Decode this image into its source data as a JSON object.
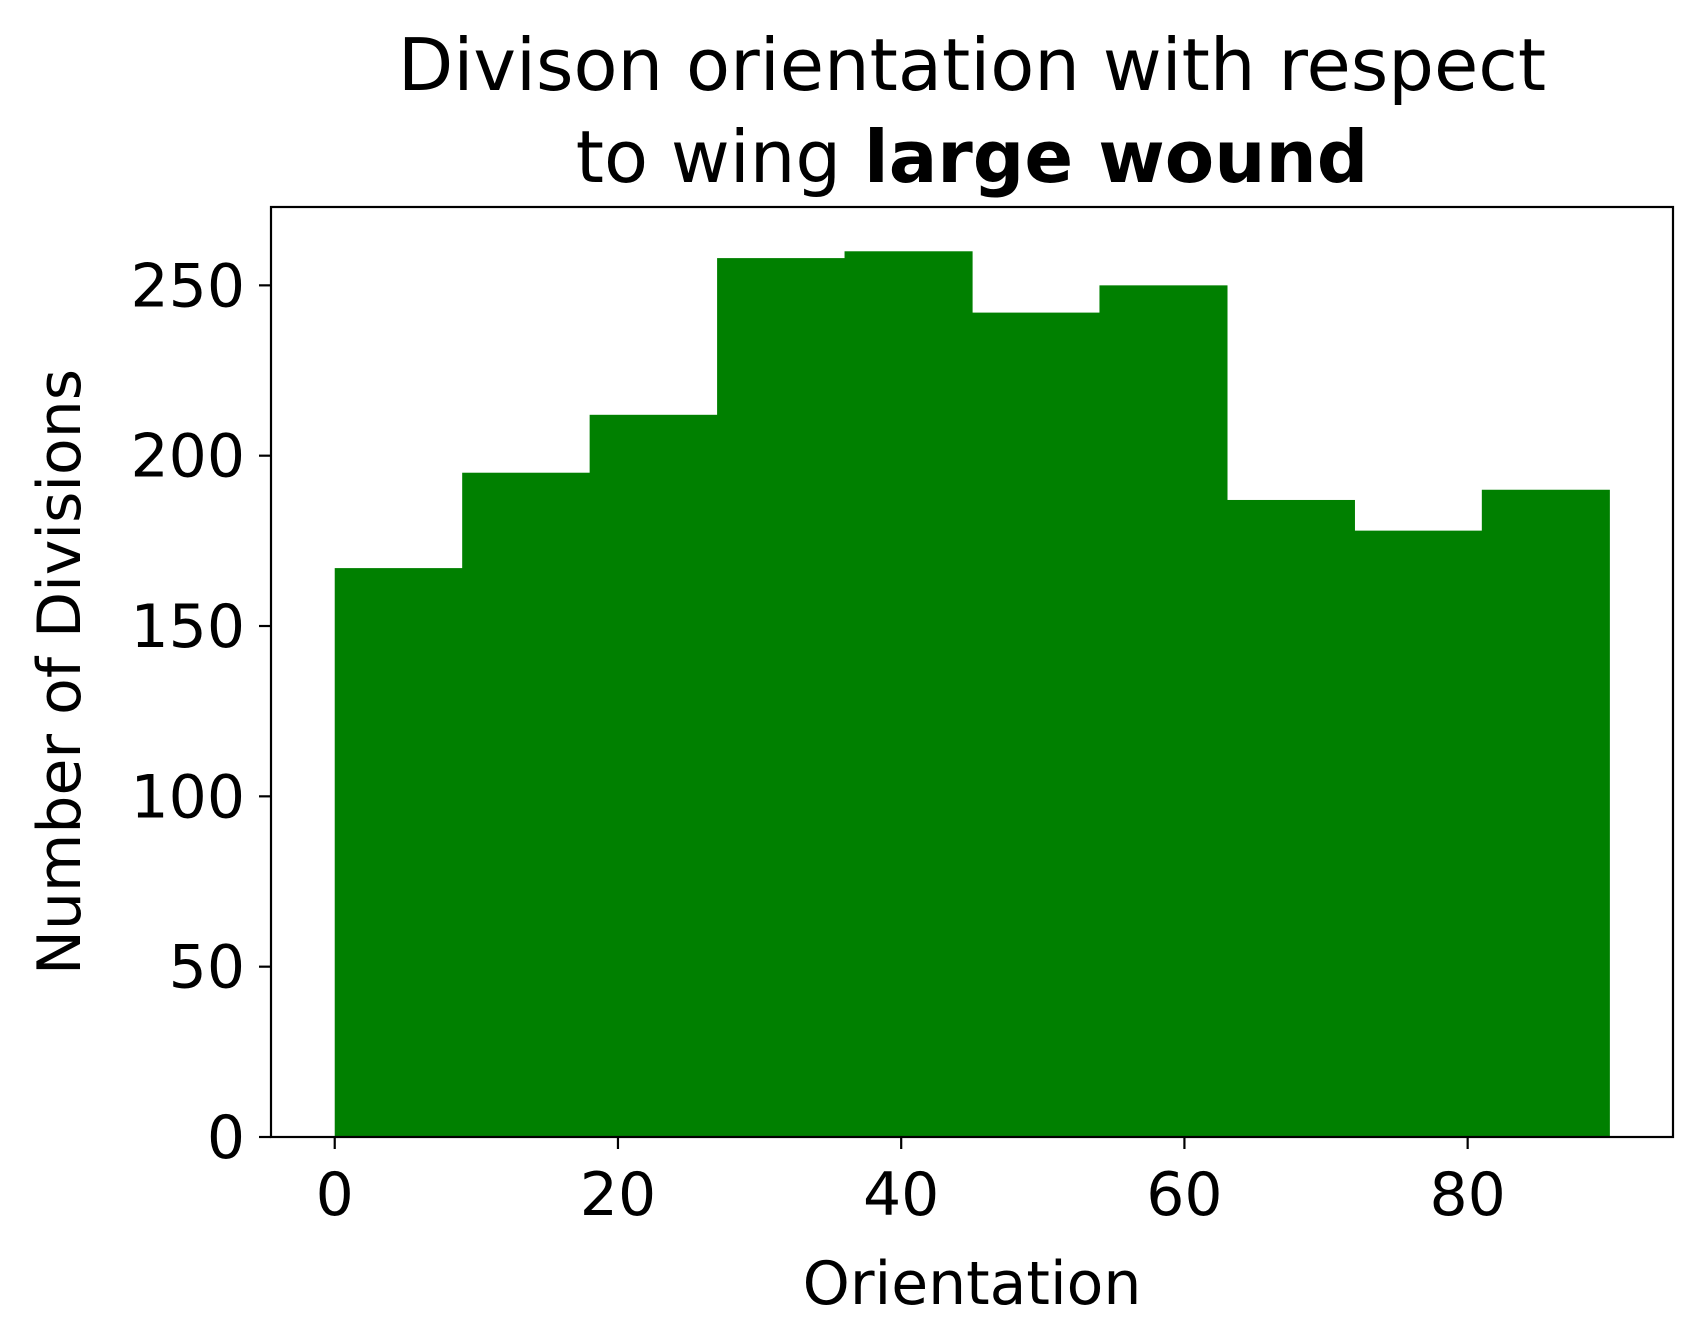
{
  "chart_data": {
    "type": "bar",
    "title_lines": [
      [
        {
          "text": "Divison orientation with respect",
          "bold": false
        }
      ],
      [
        {
          "text": "to wing ",
          "bold": false
        },
        {
          "text": "large wound",
          "bold": true
        }
      ]
    ],
    "xlabel": "Orientation",
    "ylabel": "Number of Divisions",
    "xlim": [
      -4.5,
      94.5
    ],
    "ylim": [
      0,
      273
    ],
    "xticks": [
      0,
      20,
      40,
      60,
      80
    ],
    "yticks": [
      0,
      50,
      100,
      150,
      200,
      250
    ],
    "bins": [
      {
        "start": 0,
        "end": 9,
        "count": 167
      },
      {
        "start": 9,
        "end": 18,
        "count": 195
      },
      {
        "start": 18,
        "end": 27,
        "count": 212
      },
      {
        "start": 27,
        "end": 36,
        "count": 258
      },
      {
        "start": 36,
        "end": 45,
        "count": 260
      },
      {
        "start": 45,
        "end": 54,
        "count": 242
      },
      {
        "start": 54,
        "end": 63,
        "count": 250
      },
      {
        "start": 63,
        "end": 72,
        "count": 187
      },
      {
        "start": 72,
        "end": 81,
        "count": 178
      },
      {
        "start": 81,
        "end": 90,
        "count": 190
      }
    ],
    "bar_color": "#008000",
    "grid": false,
    "legend": "none"
  }
}
